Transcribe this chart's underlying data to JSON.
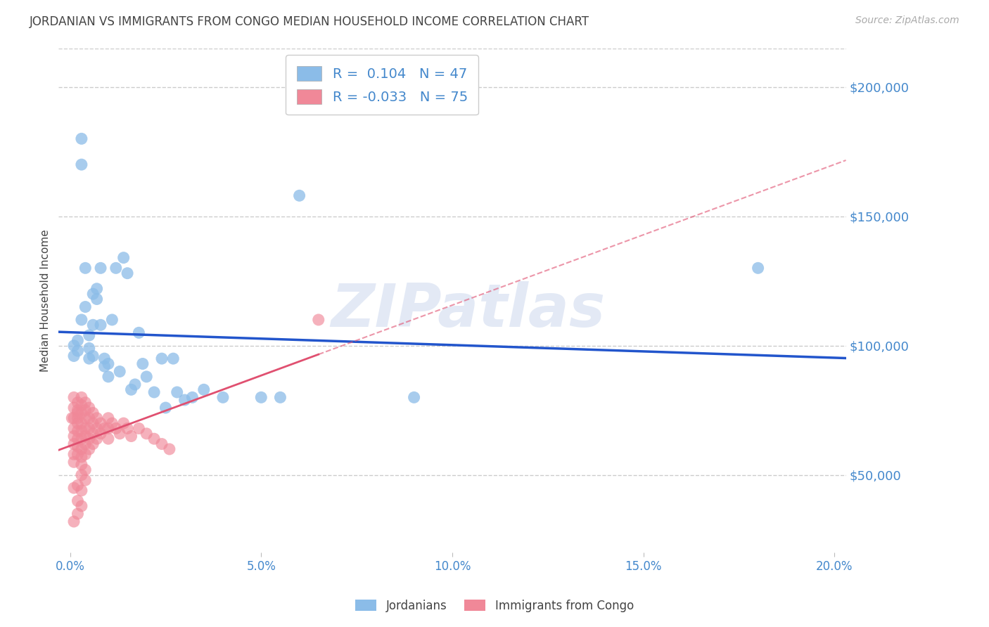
{
  "title": "JORDANIAN VS IMMIGRANTS FROM CONGO MEDIAN HOUSEHOLD INCOME CORRELATION CHART",
  "source": "Source: ZipAtlas.com",
  "ylabel": "Median Household Income",
  "xlabel_ticks": [
    "0.0%",
    "5.0%",
    "10.0%",
    "15.0%",
    "20.0%"
  ],
  "xlabel_vals": [
    0.0,
    0.05,
    0.1,
    0.15,
    0.2
  ],
  "ylabel_ticks": [
    50000,
    100000,
    150000,
    200000
  ],
  "ylabel_labels": [
    "$50,000",
    "$100,000",
    "$150,000",
    "$200,000"
  ],
  "ylim": [
    20000,
    215000
  ],
  "xlim": [
    -0.003,
    0.203
  ],
  "watermark": "ZIPatlas",
  "jordanian_color": "#8bbce8",
  "congo_color": "#f08898",
  "jordan_line_color": "#2255cc",
  "congo_line_color": "#e05070",
  "background_color": "#ffffff",
  "grid_color": "#cccccc",
  "tick_label_color": "#4488cc",
  "title_color": "#444444",
  "source_color": "#aaaaaa",
  "legend_box_color": "#cccccc",
  "jordan_scatter_x": [
    0.001,
    0.001,
    0.002,
    0.002,
    0.003,
    0.003,
    0.003,
    0.004,
    0.004,
    0.005,
    0.005,
    0.005,
    0.006,
    0.006,
    0.007,
    0.007,
    0.008,
    0.008,
    0.009,
    0.009,
    0.01,
    0.01,
    0.011,
    0.012,
    0.013,
    0.014,
    0.015,
    0.016,
    0.017,
    0.018,
    0.019,
    0.02,
    0.022,
    0.024,
    0.025,
    0.027,
    0.028,
    0.03,
    0.032,
    0.035,
    0.04,
    0.05,
    0.055,
    0.06,
    0.09,
    0.18,
    0.006
  ],
  "jordan_scatter_y": [
    100000,
    96000,
    102000,
    98000,
    180000,
    170000,
    110000,
    130000,
    115000,
    104000,
    99000,
    95000,
    108000,
    96000,
    122000,
    118000,
    130000,
    108000,
    95000,
    92000,
    93000,
    88000,
    110000,
    130000,
    90000,
    134000,
    128000,
    83000,
    85000,
    105000,
    93000,
    88000,
    82000,
    95000,
    76000,
    95000,
    82000,
    79000,
    80000,
    83000,
    80000,
    80000,
    80000,
    158000,
    80000,
    130000,
    120000
  ],
  "congo_scatter_x": [
    0.0005,
    0.001,
    0.001,
    0.001,
    0.001,
    0.001,
    0.001,
    0.001,
    0.001,
    0.002,
    0.002,
    0.002,
    0.002,
    0.002,
    0.002,
    0.002,
    0.002,
    0.002,
    0.003,
    0.003,
    0.003,
    0.003,
    0.003,
    0.003,
    0.003,
    0.003,
    0.003,
    0.004,
    0.004,
    0.004,
    0.004,
    0.004,
    0.004,
    0.004,
    0.005,
    0.005,
    0.005,
    0.005,
    0.005,
    0.006,
    0.006,
    0.006,
    0.006,
    0.007,
    0.007,
    0.007,
    0.008,
    0.008,
    0.009,
    0.01,
    0.01,
    0.01,
    0.011,
    0.012,
    0.013,
    0.014,
    0.015,
    0.016,
    0.018,
    0.02,
    0.022,
    0.024,
    0.026,
    0.001,
    0.002,
    0.003,
    0.002,
    0.003,
    0.002,
    0.001,
    0.003,
    0.004,
    0.004,
    0.065
  ],
  "congo_scatter_y": [
    72000,
    80000,
    76000,
    72000,
    68000,
    65000,
    62000,
    58000,
    55000,
    78000,
    75000,
    72000,
    70000,
    67000,
    64000,
    61000,
    58000,
    74000,
    80000,
    77000,
    74000,
    70000,
    67000,
    64000,
    60000,
    57000,
    54000,
    78000,
    75000,
    72000,
    68000,
    65000,
    62000,
    58000,
    76000,
    72000,
    68000,
    64000,
    60000,
    74000,
    70000,
    66000,
    62000,
    72000,
    68000,
    64000,
    70000,
    66000,
    68000,
    72000,
    68000,
    64000,
    70000,
    68000,
    66000,
    70000,
    68000,
    65000,
    68000,
    66000,
    64000,
    62000,
    60000,
    45000,
    46000,
    44000,
    40000,
    38000,
    35000,
    32000,
    50000,
    52000,
    48000,
    110000
  ]
}
